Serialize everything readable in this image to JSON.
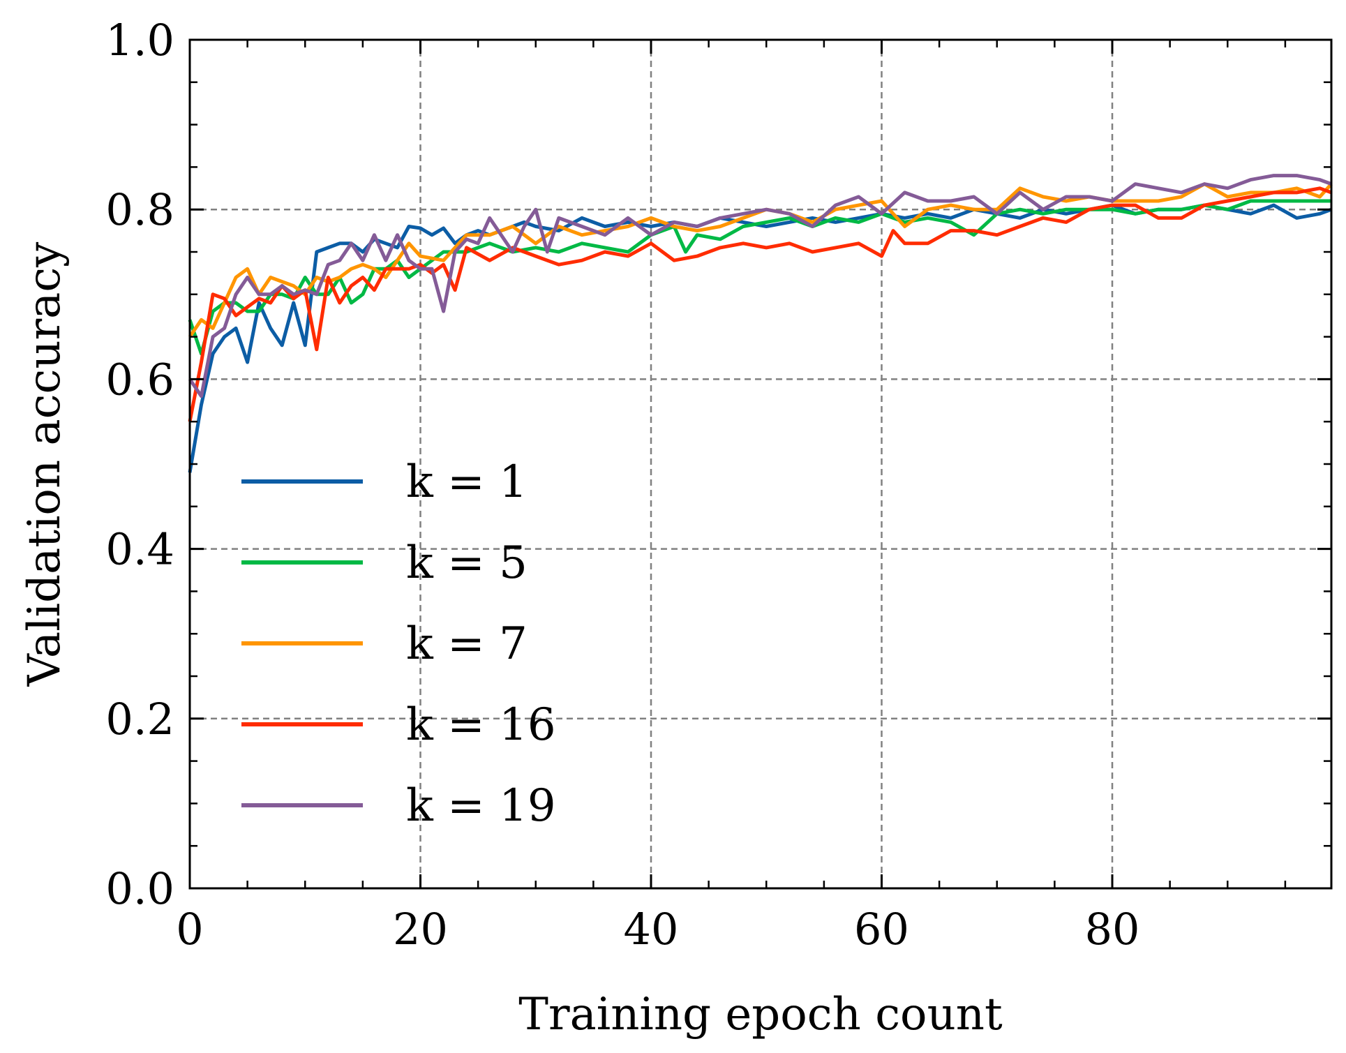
{
  "chart_data": {
    "type": "line",
    "xlabel": "Training epoch count",
    "ylabel": "Validation accuracy",
    "xlim": [
      0,
      99
    ],
    "ylim": [
      0.0,
      1.0
    ],
    "xticks": [
      0,
      20,
      40,
      60,
      80
    ],
    "xtick_labels": [
      "0",
      "20",
      "40",
      "60",
      "80"
    ],
    "yticks": [
      0.0,
      0.2,
      0.4,
      0.6,
      0.8,
      1.0
    ],
    "ytick_labels": [
      "0.0",
      "0.2",
      "0.4",
      "0.6",
      "0.8",
      "1.0"
    ],
    "grid": true,
    "legend_position": "lower-left",
    "series": [
      {
        "name": "k = 1",
        "color": "#0C5DA5",
        "x": [
          0,
          1,
          2,
          3,
          4,
          5,
          6,
          7,
          8,
          9,
          10,
          11,
          12,
          13,
          14,
          15,
          16,
          17,
          18,
          19,
          20,
          21,
          22,
          23,
          24,
          25,
          26,
          27,
          28,
          29,
          30,
          32,
          34,
          36,
          38,
          40,
          42,
          44,
          46,
          48,
          50,
          52,
          54,
          56,
          58,
          60,
          62,
          64,
          66,
          68,
          70,
          72,
          74,
          76,
          78,
          80,
          82,
          84,
          86,
          88,
          90,
          92,
          94,
          96,
          98,
          99
        ],
        "y": [
          0.49,
          0.57,
          0.63,
          0.65,
          0.66,
          0.62,
          0.69,
          0.66,
          0.64,
          0.69,
          0.64,
          0.75,
          0.755,
          0.76,
          0.76,
          0.75,
          0.765,
          0.76,
          0.755,
          0.78,
          0.778,
          0.77,
          0.778,
          0.76,
          0.77,
          0.775,
          0.77,
          0.775,
          0.78,
          0.785,
          0.78,
          0.775,
          0.79,
          0.78,
          0.785,
          0.78,
          0.785,
          0.78,
          0.79,
          0.785,
          0.78,
          0.785,
          0.79,
          0.785,
          0.79,
          0.795,
          0.79,
          0.795,
          0.79,
          0.8,
          0.795,
          0.79,
          0.8,
          0.795,
          0.8,
          0.805,
          0.795,
          0.8,
          0.8,
          0.805,
          0.8,
          0.795,
          0.805,
          0.79,
          0.795,
          0.8
        ]
      },
      {
        "name": "k = 5",
        "color": "#00B945",
        "x": [
          0,
          1,
          2,
          3,
          4,
          5,
          6,
          7,
          8,
          9,
          10,
          11,
          12,
          13,
          14,
          15,
          16,
          17,
          18,
          19,
          20,
          22,
          24,
          26,
          28,
          30,
          32,
          34,
          36,
          38,
          40,
          42,
          43,
          44,
          46,
          48,
          50,
          52,
          54,
          56,
          58,
          60,
          62,
          64,
          66,
          68,
          70,
          72,
          74,
          76,
          78,
          80,
          82,
          84,
          86,
          88,
          90,
          92,
          94,
          96,
          98,
          99
        ],
        "y": [
          0.67,
          0.63,
          0.68,
          0.69,
          0.69,
          0.68,
          0.68,
          0.7,
          0.7,
          0.695,
          0.72,
          0.7,
          0.7,
          0.72,
          0.69,
          0.7,
          0.73,
          0.73,
          0.74,
          0.72,
          0.73,
          0.75,
          0.75,
          0.76,
          0.75,
          0.755,
          0.75,
          0.76,
          0.755,
          0.75,
          0.77,
          0.78,
          0.75,
          0.77,
          0.765,
          0.78,
          0.785,
          0.79,
          0.78,
          0.79,
          0.785,
          0.795,
          0.785,
          0.79,
          0.785,
          0.77,
          0.795,
          0.8,
          0.795,
          0.8,
          0.8,
          0.8,
          0.795,
          0.8,
          0.8,
          0.805,
          0.8,
          0.81,
          0.81,
          0.81,
          0.81,
          0.81
        ]
      },
      {
        "name": "k = 7",
        "color": "#FF9500",
        "x": [
          0,
          1,
          2,
          3,
          4,
          5,
          6,
          7,
          8,
          9,
          10,
          11,
          12,
          13,
          14,
          15,
          16,
          17,
          18,
          19,
          20,
          22,
          24,
          26,
          28,
          30,
          32,
          34,
          36,
          38,
          40,
          42,
          44,
          46,
          48,
          50,
          52,
          54,
          56,
          58,
          60,
          62,
          64,
          66,
          68,
          70,
          72,
          74,
          76,
          78,
          80,
          82,
          84,
          86,
          88,
          90,
          92,
          94,
          96,
          98,
          99
        ],
        "y": [
          0.65,
          0.67,
          0.66,
          0.69,
          0.72,
          0.73,
          0.7,
          0.72,
          0.715,
          0.71,
          0.7,
          0.72,
          0.715,
          0.72,
          0.73,
          0.735,
          0.73,
          0.72,
          0.74,
          0.76,
          0.745,
          0.74,
          0.77,
          0.77,
          0.78,
          0.76,
          0.78,
          0.77,
          0.775,
          0.78,
          0.79,
          0.78,
          0.775,
          0.78,
          0.79,
          0.8,
          0.795,
          0.785,
          0.8,
          0.805,
          0.81,
          0.78,
          0.8,
          0.805,
          0.8,
          0.8,
          0.825,
          0.815,
          0.81,
          0.815,
          0.81,
          0.81,
          0.81,
          0.815,
          0.83,
          0.815,
          0.82,
          0.82,
          0.825,
          0.815,
          0.83
        ]
      },
      {
        "name": "k = 16",
        "color": "#FF2C00",
        "x": [
          0,
          1,
          2,
          3,
          4,
          5,
          6,
          7,
          8,
          9,
          10,
          11,
          12,
          13,
          14,
          15,
          16,
          17,
          18,
          19,
          20,
          21,
          22,
          23,
          24,
          26,
          28,
          30,
          32,
          34,
          36,
          38,
          40,
          42,
          44,
          46,
          48,
          50,
          52,
          54,
          56,
          58,
          60,
          61,
          62,
          64,
          66,
          68,
          70,
          72,
          74,
          76,
          78,
          80,
          82,
          84,
          86,
          88,
          90,
          92,
          94,
          96,
          98,
          99
        ],
        "y": [
          0.55,
          0.62,
          0.7,
          0.695,
          0.675,
          0.685,
          0.695,
          0.69,
          0.71,
          0.695,
          0.705,
          0.635,
          0.72,
          0.69,
          0.71,
          0.72,
          0.705,
          0.73,
          0.73,
          0.73,
          0.735,
          0.725,
          0.735,
          0.705,
          0.755,
          0.74,
          0.755,
          0.745,
          0.735,
          0.74,
          0.75,
          0.745,
          0.76,
          0.74,
          0.745,
          0.755,
          0.76,
          0.755,
          0.76,
          0.75,
          0.755,
          0.76,
          0.745,
          0.775,
          0.76,
          0.76,
          0.775,
          0.775,
          0.77,
          0.78,
          0.79,
          0.785,
          0.8,
          0.805,
          0.805,
          0.79,
          0.79,
          0.805,
          0.81,
          0.815,
          0.82,
          0.82,
          0.825,
          0.82
        ]
      },
      {
        "name": "k = 19",
        "color": "#845B97",
        "x": [
          0,
          1,
          2,
          3,
          4,
          5,
          6,
          7,
          8,
          9,
          10,
          11,
          12,
          13,
          14,
          15,
          16,
          17,
          18,
          19,
          20,
          21,
          22,
          23,
          24,
          25,
          26,
          27,
          28,
          29,
          30,
          31,
          32,
          34,
          36,
          38,
          40,
          42,
          44,
          46,
          48,
          50,
          52,
          54,
          56,
          58,
          60,
          62,
          64,
          66,
          68,
          70,
          72,
          74,
          76,
          78,
          80,
          82,
          84,
          86,
          88,
          90,
          92,
          94,
          96,
          98,
          99
        ],
        "y": [
          0.6,
          0.58,
          0.65,
          0.66,
          0.7,
          0.72,
          0.7,
          0.7,
          0.71,
          0.7,
          0.705,
          0.7,
          0.735,
          0.74,
          0.76,
          0.74,
          0.77,
          0.74,
          0.77,
          0.74,
          0.73,
          0.73,
          0.68,
          0.75,
          0.765,
          0.76,
          0.79,
          0.77,
          0.75,
          0.78,
          0.8,
          0.75,
          0.79,
          0.78,
          0.77,
          0.79,
          0.77,
          0.785,
          0.78,
          0.79,
          0.795,
          0.8,
          0.795,
          0.78,
          0.805,
          0.815,
          0.795,
          0.82,
          0.81,
          0.81,
          0.815,
          0.795,
          0.82,
          0.8,
          0.815,
          0.815,
          0.81,
          0.83,
          0.825,
          0.82,
          0.83,
          0.825,
          0.835,
          0.84,
          0.84,
          0.835,
          0.83
        ]
      }
    ]
  }
}
